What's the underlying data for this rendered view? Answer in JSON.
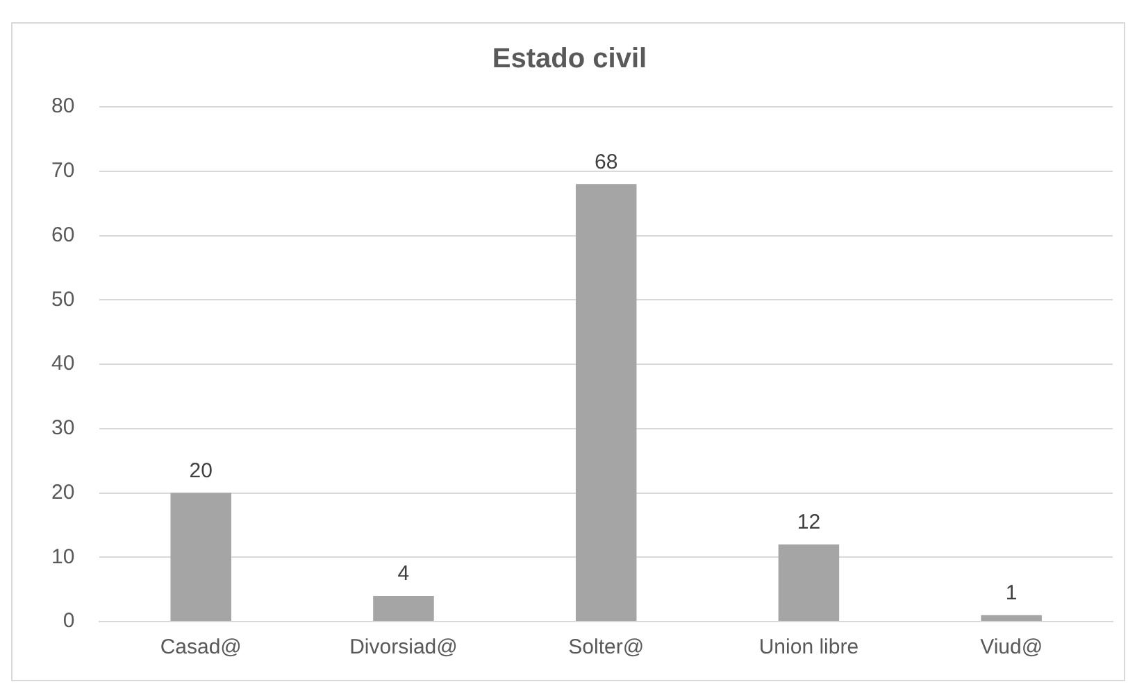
{
  "chart_data": {
    "type": "bar",
    "title": "Estado civil",
    "categories": [
      "Casad@",
      "Divorsiad@",
      "Solter@",
      "Union libre",
      "Viud@"
    ],
    "values": [
      20,
      4,
      68,
      12,
      1
    ],
    "color": "#a5a5a5",
    "ylim": [
      0,
      80
    ],
    "yticks": [
      0,
      10,
      20,
      30,
      40,
      50,
      60,
      70,
      80
    ],
    "grid": "y",
    "data_labels": true,
    "legend": false
  }
}
